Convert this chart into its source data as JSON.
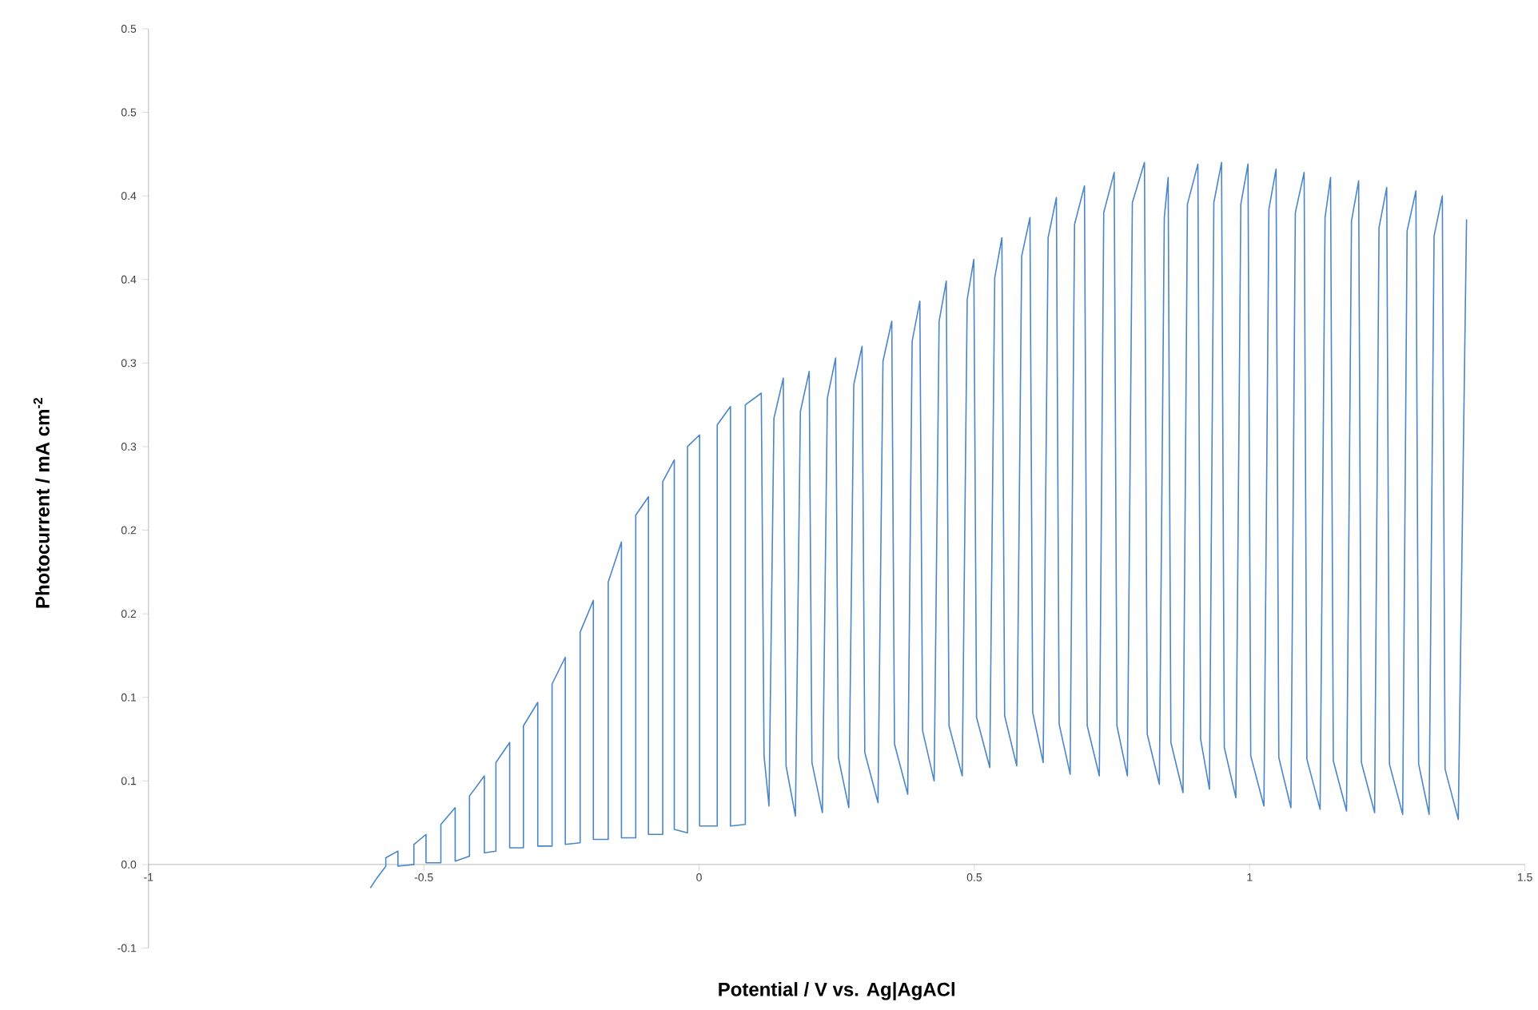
{
  "chart_data": {
    "type": "line",
    "xlabel": "Potential / V vs. Ag|AgACl",
    "ylabel": "Photocurrent / mA cm$^{-2}$",
    "xlim": [
      -1,
      1.5
    ],
    "xticks": [
      -1,
      -0.5,
      0,
      0.5,
      1,
      1.5
    ],
    "ylim": [
      -0.05,
      0.5
    ],
    "yticks": [
      {
        "value": -0.05,
        "label": "-0.1"
      },
      {
        "value": 0,
        "label": "0.0"
      },
      {
        "value": 0.05,
        "label": "0.1"
      },
      {
        "value": 0.1,
        "label": "0.1"
      },
      {
        "value": 0.15,
        "label": "0.2"
      },
      {
        "value": 0.2,
        "label": "0.2"
      },
      {
        "value": 0.25,
        "label": "0.3"
      },
      {
        "value": 0.3,
        "label": "0.3"
      },
      {
        "value": 0.35,
        "label": "0.4"
      },
      {
        "value": 0.4,
        "label": "0.4"
      },
      {
        "value": 0.45,
        "label": "0.5"
      },
      {
        "value": 0.5,
        "label": "0.5"
      }
    ],
    "series": [
      {
        "color": "#4a86c8",
        "x": [
          -0.597,
          -0.585,
          -0.571,
          -0.569,
          -0.569,
          -0.547,
          -0.547,
          -0.518,
          -0.518,
          -0.496,
          -0.496,
          -0.469,
          -0.469,
          -0.443,
          -0.443,
          -0.417,
          -0.417,
          -0.39,
          -0.39,
          -0.369,
          -0.369,
          -0.344,
          -0.344,
          -0.319,
          -0.319,
          -0.293,
          -0.293,
          -0.267,
          -0.267,
          -0.243,
          -0.243,
          -0.216,
          -0.216,
          -0.192,
          -0.192,
          -0.165,
          -0.165,
          -0.141,
          -0.141,
          -0.115,
          -0.115,
          -0.092,
          -0.092,
          -0.066,
          -0.066,
          -0.045,
          -0.045,
          -0.021,
          -0.021,
          0.001,
          0.001,
          0.033,
          0.033,
          0.057,
          0.057,
          0.084,
          0.084,
          0.113,
          0.118,
          0.127,
          0.136,
          0.153,
          0.158,
          0.175,
          0.184,
          0.2,
          0.205,
          0.224,
          0.233,
          0.248,
          0.253,
          0.272,
          0.281,
          0.296,
          0.301,
          0.325,
          0.334,
          0.35,
          0.355,
          0.379,
          0.387,
          0.401,
          0.406,
          0.427,
          0.436,
          0.449,
          0.454,
          0.478,
          0.487,
          0.499,
          0.504,
          0.528,
          0.537,
          0.55,
          0.555,
          0.577,
          0.586,
          0.601,
          0.606,
          0.625,
          0.634,
          0.649,
          0.654,
          0.674,
          0.682,
          0.7,
          0.705,
          0.727,
          0.735,
          0.754,
          0.759,
          0.778,
          0.787,
          0.809,
          0.814,
          0.836,
          0.845,
          0.852,
          0.857,
          0.879,
          0.887,
          0.906,
          0.911,
          0.927,
          0.935,
          0.949,
          0.954,
          0.975,
          0.984,
          0.997,
          1.002,
          1.026,
          1.035,
          1.048,
          1.053,
          1.075,
          1.083,
          1.099,
          1.104,
          1.128,
          1.137,
          1.147,
          1.152,
          1.176,
          1.185,
          1.198,
          1.203,
          1.227,
          1.235,
          1.249,
          1.254,
          1.278,
          1.286,
          1.302,
          1.307,
          1.326,
          1.335,
          1.35,
          1.355,
          1.379,
          1.394
        ],
        "values": [
          -0.014,
          -0.008,
          -0.002,
          -0.001,
          0.004,
          0.008,
          -0.001,
          0.0,
          0.012,
          0.018,
          0.001,
          0.001,
          0.024,
          0.034,
          0.002,
          0.005,
          0.041,
          0.053,
          0.007,
          0.008,
          0.061,
          0.073,
          0.01,
          0.01,
          0.083,
          0.097,
          0.011,
          0.011,
          0.108,
          0.124,
          0.012,
          0.013,
          0.139,
          0.158,
          0.015,
          0.015,
          0.169,
          0.193,
          0.016,
          0.016,
          0.209,
          0.22,
          0.018,
          0.018,
          0.229,
          0.242,
          0.021,
          0.019,
          0.25,
          0.257,
          0.023,
          0.023,
          0.263,
          0.274,
          0.023,
          0.024,
          0.275,
          0.282,
          0.065,
          0.035,
          0.267,
          0.291,
          0.059,
          0.029,
          0.271,
          0.295,
          0.061,
          0.031,
          0.279,
          0.303,
          0.064,
          0.034,
          0.287,
          0.31,
          0.067,
          0.037,
          0.301,
          0.325,
          0.072,
          0.042,
          0.313,
          0.337,
          0.08,
          0.05,
          0.325,
          0.349,
          0.083,
          0.053,
          0.338,
          0.362,
          0.088,
          0.058,
          0.351,
          0.375,
          0.089,
          0.059,
          0.364,
          0.387,
          0.091,
          0.061,
          0.375,
          0.399,
          0.084,
          0.054,
          0.383,
          0.406,
          0.083,
          0.053,
          0.39,
          0.414,
          0.083,
          0.053,
          0.396,
          0.42,
          0.078,
          0.048,
          0.387,
          0.411,
          0.073,
          0.043,
          0.395,
          0.419,
          0.075,
          0.045,
          0.396,
          0.42,
          0.07,
          0.04,
          0.395,
          0.419,
          0.065,
          0.035,
          0.392,
          0.416,
          0.064,
          0.034,
          0.39,
          0.414,
          0.063,
          0.033,
          0.387,
          0.411,
          0.062,
          0.032,
          0.385,
          0.409,
          0.061,
          0.031,
          0.381,
          0.405,
          0.06,
          0.03,
          0.379,
          0.403,
          0.06,
          0.03,
          0.376,
          0.4,
          0.057,
          0.027,
          0.386
        ]
      }
    ]
  }
}
